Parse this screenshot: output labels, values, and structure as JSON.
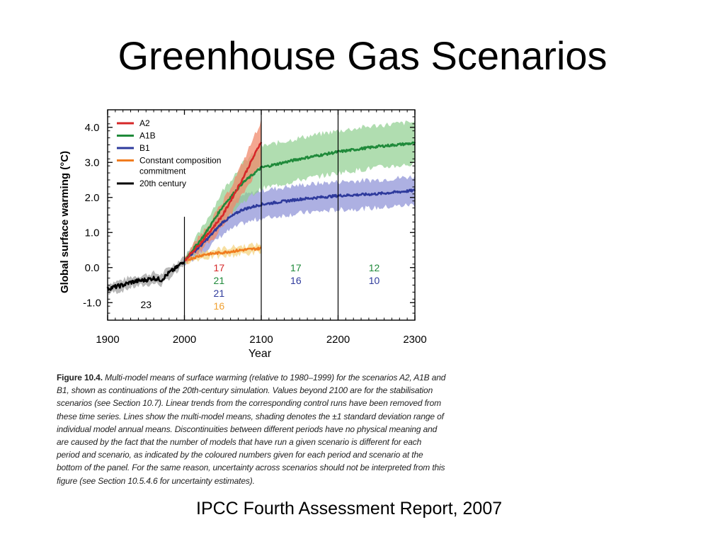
{
  "slide": {
    "title": "Greenhouse Gas Scenarios",
    "source": "IPCC Fourth Assessment Report, 2007"
  },
  "caption": {
    "label": "Figure 10.4.",
    "text": "Multi-model means of surface warming (relative to 1980–1999) for the scenarios A2, A1B and B1, shown as continuations of the 20th-century simulation. Values beyond 2100 are for the stabilisation scenarios (see Section 10.7). Linear trends from the corresponding control runs have been removed from these time series. Lines show the multi-model means, shading denotes the ±1 standard deviation range of individual model annual means. Discontinuities between different periods have no physical meaning and are caused by the fact that the number of models that have run a given scenario is different for each period and scenario, as indicated by the coloured numbers given for each period and scenario at the bottom of the panel. For the same reason, uncertainty across scenarios should not be interpreted from this figure (see Section 10.5.4.6 for uncertainty estimates)."
  },
  "chart_data": {
    "type": "line",
    "xlabel": "Year",
    "ylabel": "Global surface warming (°C)",
    "xlim": [
      1900,
      2300
    ],
    "ylim": [
      -1.5,
      4.5
    ],
    "x_ticks": [
      1900,
      2000,
      2100,
      2200,
      2300
    ],
    "x_tick_labels": [
      "1900",
      "2000",
      "2100",
      "2200",
      "2300"
    ],
    "y_ticks": [
      -1,
      0,
      1,
      2,
      3,
      4
    ],
    "y_tick_labels": [
      "-1.0",
      "0.0",
      "1.0",
      "2.0",
      "3.0",
      "4.0"
    ],
    "period_dividers": [
      2000,
      2100,
      2200
    ],
    "legend_position": "top-left",
    "series": [
      {
        "name": "A2",
        "color": "#d62728",
        "x": [
          2000,
          2025,
          2050,
          2075,
          2100
        ],
        "y": [
          0.2,
          0.8,
          1.5,
          2.5,
          3.6
        ],
        "sd": [
          0.1,
          0.25,
          0.35,
          0.45,
          0.6
        ]
      },
      {
        "name": "A1B",
        "color": "#1f8a3a",
        "x": [
          2000,
          2025,
          2050,
          2075,
          2100,
          2150,
          2200,
          2250,
          2300
        ],
        "y": [
          0.2,
          0.9,
          1.75,
          2.4,
          2.85,
          3.1,
          3.3,
          3.45,
          3.55
        ],
        "sd": [
          0.1,
          0.3,
          0.45,
          0.55,
          0.6,
          0.6,
          0.6,
          0.6,
          0.6
        ]
      },
      {
        "name": "B1",
        "color": "#2e3a9c",
        "x": [
          2000,
          2025,
          2050,
          2075,
          2100,
          2150,
          2200,
          2250,
          2300
        ],
        "y": [
          0.2,
          0.7,
          1.3,
          1.65,
          1.8,
          1.95,
          2.05,
          2.1,
          2.2
        ],
        "sd": [
          0.1,
          0.25,
          0.35,
          0.4,
          0.4,
          0.4,
          0.4,
          0.4,
          0.4
        ]
      },
      {
        "name": "Constant composition commitment",
        "color": "#f07c1f",
        "x": [
          2000,
          2025,
          2050,
          2075,
          2100
        ],
        "y": [
          0.2,
          0.37,
          0.43,
          0.5,
          0.55
        ],
        "sd": [
          0.05,
          0.1,
          0.12,
          0.12,
          0.12
        ]
      },
      {
        "name": "20th century",
        "color": "#000000",
        "x": [
          1900,
          1910,
          1920,
          1930,
          1940,
          1950,
          1960,
          1970,
          1980,
          1990,
          2000
        ],
        "y": [
          -0.6,
          -0.55,
          -0.5,
          -0.42,
          -0.38,
          -0.35,
          -0.3,
          -0.35,
          -0.15,
          0.0,
          0.2
        ],
        "sd": [
          0.15,
          0.15,
          0.15,
          0.15,
          0.15,
          0.15,
          0.15,
          0.15,
          0.15,
          0.15,
          0.15
        ]
      }
    ],
    "model_counts": [
      {
        "x": 1950,
        "lines": [
          {
            "text": "23",
            "color": "#000000"
          }
        ]
      },
      {
        "x": 2045,
        "lines": [
          {
            "text": "17",
            "color": "#d62728"
          },
          {
            "text": "21",
            "color": "#1f8a3a"
          },
          {
            "text": "21",
            "color": "#2e3a9c"
          },
          {
            "text": "16",
            "color": "#f0a030"
          }
        ]
      },
      {
        "x": 2145,
        "lines": [
          {
            "text": "17",
            "color": "#1f8a3a"
          },
          {
            "text": "16",
            "color": "#2e3a9c"
          }
        ]
      },
      {
        "x": 2247,
        "lines": [
          {
            "text": "12",
            "color": "#1f8a3a"
          },
          {
            "text": "10",
            "color": "#2e3a9c"
          }
        ]
      }
    ]
  }
}
